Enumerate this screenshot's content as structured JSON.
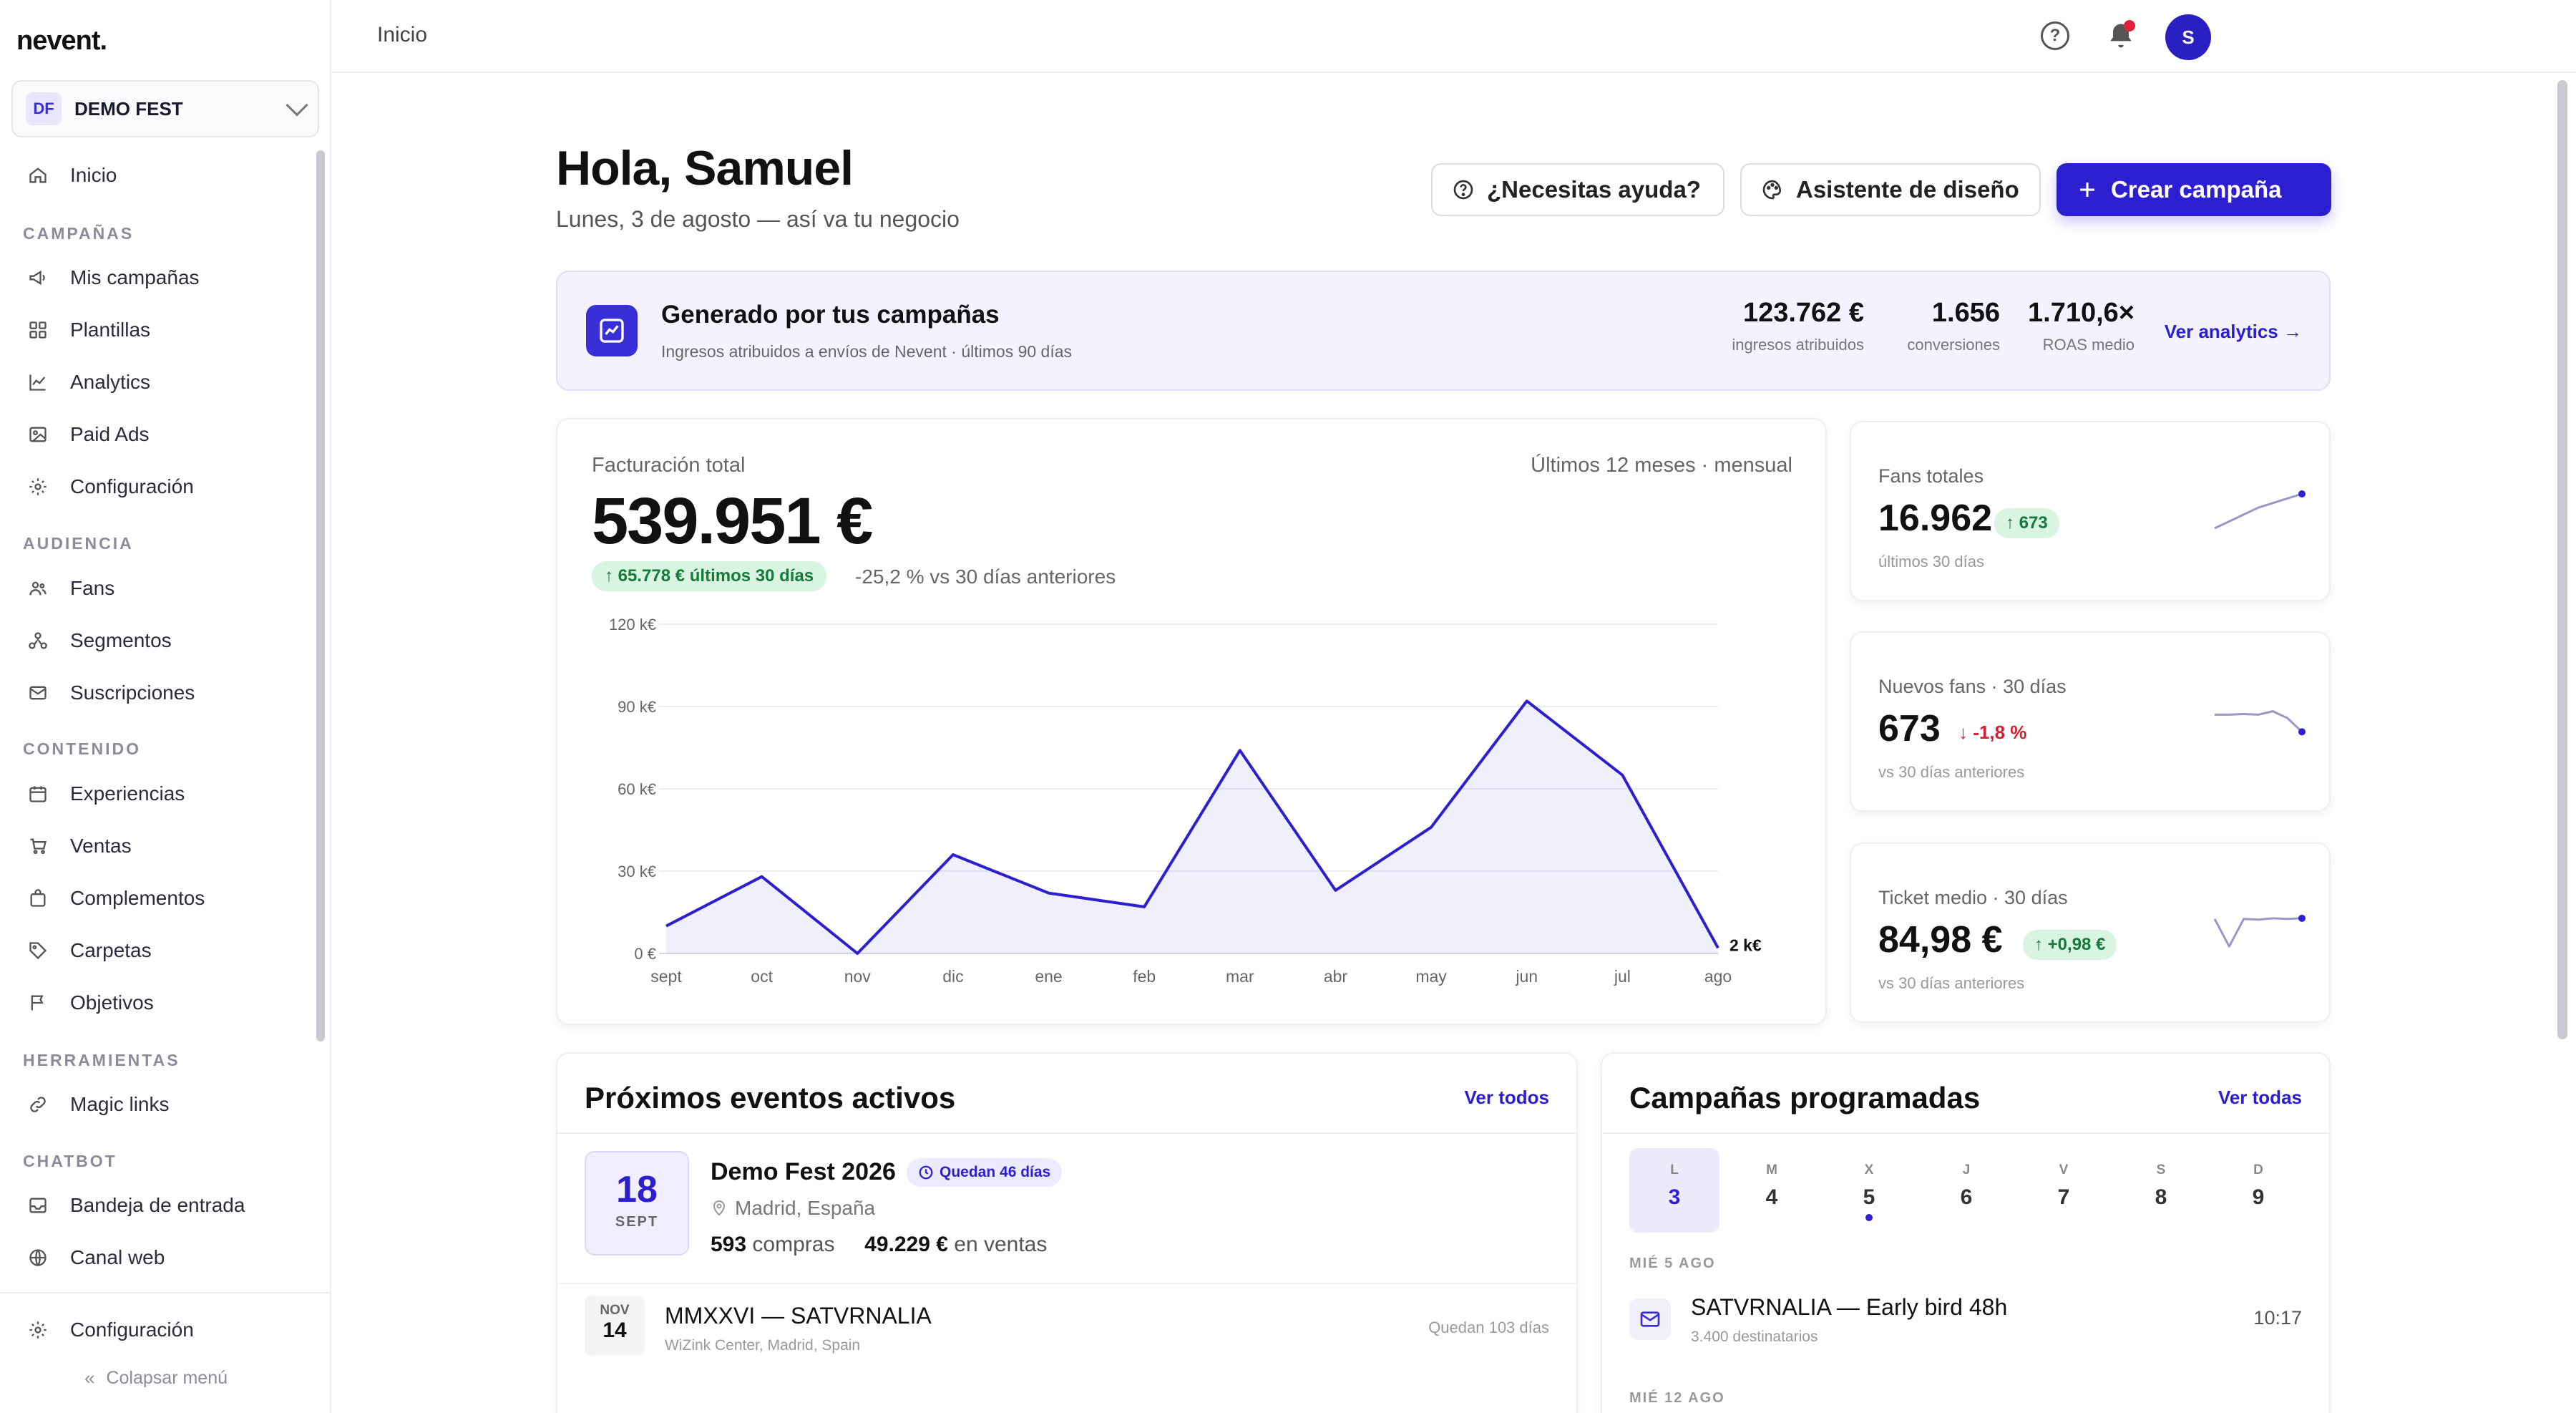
{
  "app": {
    "logo": "nevent."
  },
  "org": {
    "badge": "DF",
    "name": "DEMO FEST"
  },
  "sidebar": {
    "home": "Inicio",
    "sections": {
      "campanas": "CAMPAÑAS",
      "audiencia": "AUDIENCIA",
      "contenido": "CONTENIDO",
      "herramientas": "HERRAMIENTAS",
      "chatbot": "CHATBOT"
    },
    "items": {
      "mis_campanas": "Mis campañas",
      "plantillas": "Plantillas",
      "analytics": "Analytics",
      "paid_ads": "Paid Ads",
      "configuracion": "Configuración",
      "fans": "Fans",
      "segmentos": "Segmentos",
      "suscripciones": "Suscripciones",
      "experiencias": "Experiencias",
      "ventas": "Ventas",
      "complementos": "Complementos",
      "carpetas": "Carpetas",
      "objetivos": "Objetivos",
      "magic_links": "Magic links",
      "bandeja": "Bandeja de entrada",
      "canal_web": "Canal web"
    },
    "footer_config": "Configuración",
    "collapse": "Colapsar menú"
  },
  "topbar": {
    "breadcrumb": "Inicio",
    "avatar": "S"
  },
  "header": {
    "greeting": "Hola, Samuel",
    "subtitle": "Lunes, 3 de agosto — así va tu negocio",
    "help_btn": "¿Necesitas ayuda?",
    "design_btn": "Asistente de diseño",
    "create_btn": "Crear campaña"
  },
  "banner": {
    "title": "Generado por tus campañas",
    "subtitle": "Ingresos atribuidos a envíos de Nevent · últimos 90 días",
    "kpis": [
      {
        "value": "123.762 €",
        "label": "ingresos atribuidos"
      },
      {
        "value": "1.656",
        "label": "conversiones"
      },
      {
        "value": "1.710,6×",
        "label": "ROAS medio"
      }
    ],
    "link": "Ver analytics →"
  },
  "revenue": {
    "label": "Facturación total",
    "period": "Últimos 12 meses · mensual",
    "value": "539.951 €",
    "delta": "↑ 65.778 € últimos 30 días",
    "compare": "-25,2 % vs 30 días anteriores"
  },
  "chart_data": {
    "type": "area",
    "x": [
      "sept",
      "oct",
      "nov",
      "dic",
      "ene",
      "feb",
      "mar",
      "abr",
      "may",
      "jun",
      "jul",
      "ago"
    ],
    "values": [
      10,
      28,
      0,
      36,
      22,
      17,
      74,
      23,
      46,
      92,
      65,
      2
    ],
    "yticks": [
      "0 €",
      "30 k€",
      "60 k€",
      "90 k€",
      "120 k€"
    ],
    "ylim": [
      0,
      120
    ],
    "last_label": "2 k€",
    "color": "#2d1fd0"
  },
  "stats": [
    {
      "label": "Fans totales",
      "value": "16.962",
      "badge": "↑ 673",
      "sub": "últimos 30 días",
      "trend": "up",
      "spark": [
        0,
        0.3,
        0.6,
        0.8,
        1
      ]
    },
    {
      "label": "Nuevos fans · 30 días",
      "value": "673",
      "badge": "↓ -1,8 %",
      "sub": "vs 30 días anteriores",
      "trend": "down",
      "spark": [
        0.7,
        0.7,
        0.72,
        0.7,
        0.8,
        0.6,
        0.2
      ]
    },
    {
      "label": "Ticket medio · 30 días",
      "value": "84,98 €",
      "badge": "↑ +0,98 €",
      "sub": "vs 30 días anteriores",
      "trend": "up",
      "spark": [
        0.9,
        0.1,
        0.9,
        0.88,
        0.92,
        0.9,
        0.92
      ]
    }
  ],
  "events": {
    "title": "Próximos eventos activos",
    "link": "Ver todos",
    "main": {
      "day": "18",
      "month": "SEPT",
      "name": "Demo Fest 2026",
      "badge": "Quedan 46 días",
      "place": "Madrid, España",
      "purchases": "593",
      "purchases_label": "compras",
      "sales": "49.229 €",
      "sales_label": "en ventas"
    },
    "second": {
      "month": "NOV",
      "day": "14",
      "name": "MMXXVI — SATVRNALIA",
      "location": "WiZink Center, Madrid, Spain",
      "left": "Quedan 103 días"
    }
  },
  "campaigns": {
    "title": "Campañas programadas",
    "link": "Ver todas",
    "week": [
      {
        "l": "L",
        "n": "3",
        "active": true,
        "dot": false
      },
      {
        "l": "M",
        "n": "4",
        "active": false,
        "dot": false
      },
      {
        "l": "X",
        "n": "5",
        "active": false,
        "dot": true
      },
      {
        "l": "J",
        "n": "6",
        "active": false,
        "dot": false
      },
      {
        "l": "V",
        "n": "7",
        "active": false,
        "dot": false
      },
      {
        "l": "S",
        "n": "8",
        "active": false,
        "dot": false
      },
      {
        "l": "D",
        "n": "9",
        "active": false,
        "dot": false
      }
    ],
    "group1": "MIÉ 5 AGO",
    "item": {
      "name": "SATVRNALIA — Early bird 48h",
      "recipients": "3.400 destinatarios",
      "time": "10:17"
    },
    "group2": "MIÉ 12 AGO"
  }
}
